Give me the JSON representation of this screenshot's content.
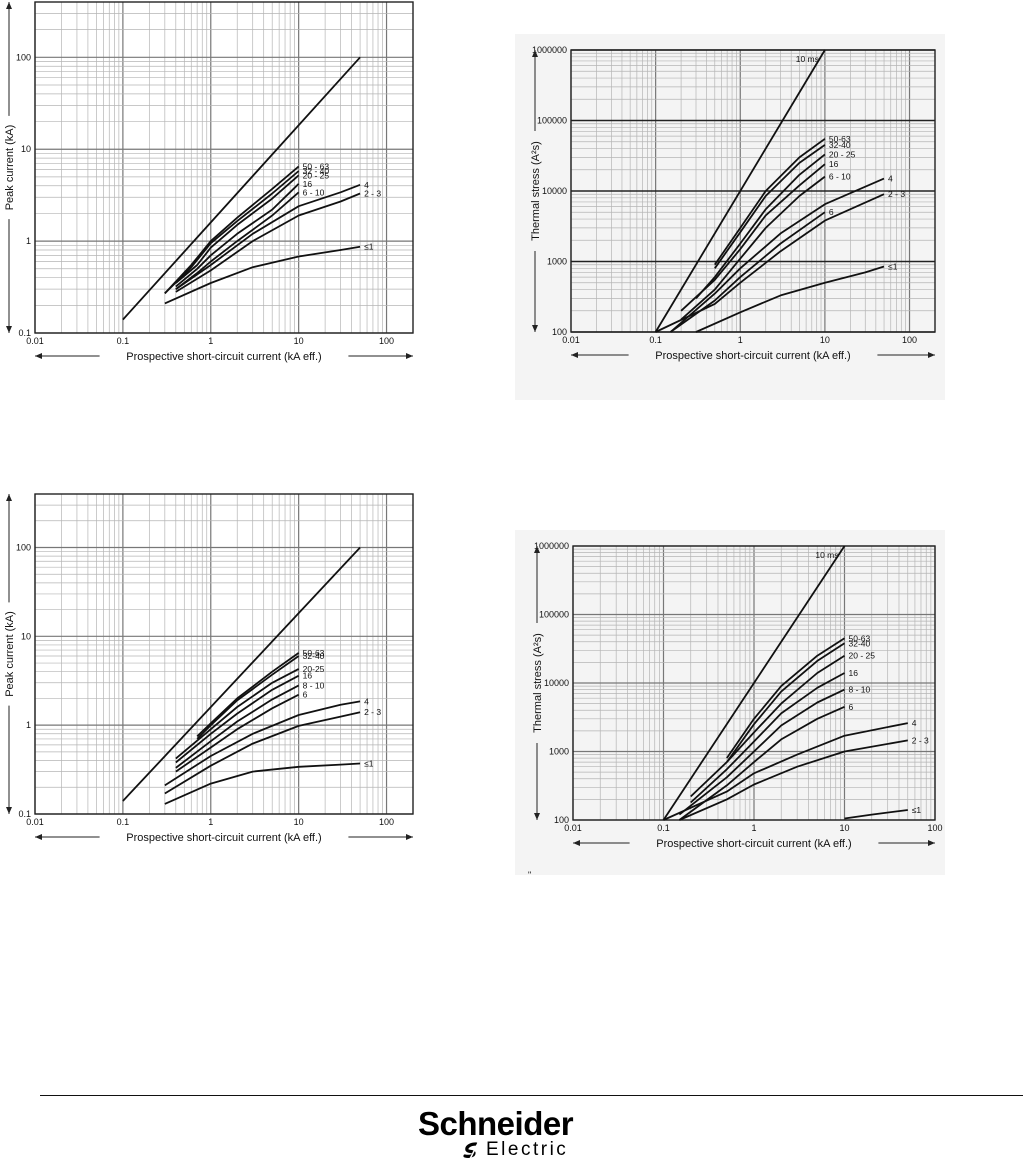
{
  "chart_data": [
    {
      "type": "line",
      "xlabel": "Prospective short-circuit current (kA eff.)",
      "ylabel": "Peak current (kA)",
      "x_scale": "log",
      "y_scale": "log",
      "xlim": [
        0.01,
        200
      ],
      "ylim": [
        0.1,
        400
      ],
      "x_ticks": [
        "0.01",
        "0.1",
        "1",
        "10",
        "100"
      ],
      "y_ticks": [
        "0.1",
        "1",
        "10",
        "100"
      ],
      "grid": true,
      "series": [
        {
          "name": "",
          "x": [
            0.1,
            50
          ],
          "y": [
            0.14,
            100
          ]
        },
        {
          "name": "50 - 63",
          "x": [
            0.3,
            0.6,
            1,
            2,
            5,
            10
          ],
          "y": [
            0.27,
            0.55,
            1,
            1.8,
            3.7,
            6.5
          ]
        },
        {
          "name": "32 - 40",
          "x": [
            0.3,
            0.6,
            1,
            2,
            5,
            10
          ],
          "y": [
            0.27,
            0.52,
            0.95,
            1.65,
            3.3,
            5.8
          ]
        },
        {
          "name": "20 - 25",
          "x": [
            0.4,
            0.7,
            1,
            2,
            5,
            10
          ],
          "y": [
            0.35,
            0.55,
            0.85,
            1.5,
            2.9,
            5.2
          ]
        },
        {
          "name": "16",
          "x": [
            0.4,
            0.7,
            1,
            2,
            5,
            10
          ],
          "y": [
            0.32,
            0.5,
            0.7,
            1.2,
            2.2,
            4.2
          ]
        },
        {
          "name": "6 - 10",
          "x": [
            0.4,
            0.7,
            1,
            2,
            5,
            10
          ],
          "y": [
            0.3,
            0.45,
            0.6,
            1.0,
            1.9,
            3.4
          ]
        },
        {
          "name": "4",
          "x": [
            0.4,
            1,
            3,
            10,
            30,
            50
          ],
          "y": [
            0.3,
            0.55,
            1.2,
            2.4,
            3.4,
            4.1
          ]
        },
        {
          "name": "2 - 3",
          "x": [
            0.4,
            1,
            3,
            10,
            30,
            50
          ],
          "y": [
            0.28,
            0.48,
            1.0,
            1.9,
            2.7,
            3.3
          ]
        },
        {
          "name": "≤1",
          "x": [
            0.3,
            1,
            3,
            10,
            30,
            50
          ],
          "y": [
            0.21,
            0.35,
            0.52,
            0.68,
            0.8,
            0.87
          ]
        }
      ]
    },
    {
      "type": "line",
      "xlabel": "Prospective short-circuit current (kA eff.)",
      "ylabel": "Thermal stress (A²s)",
      "x_scale": "log",
      "y_scale": "log",
      "xlim": [
        0.01,
        200
      ],
      "ylim": [
        100,
        1000000
      ],
      "x_ticks": [
        "0.01",
        "0.1",
        "1",
        "10",
        "100"
      ],
      "y_ticks": [
        "100",
        "1000",
        "10000",
        "100000",
        "1000000"
      ],
      "grid": true,
      "series": [
        {
          "name": "10 ms",
          "x": [
            0.1,
            10
          ],
          "y": [
            100,
            1000000
          ]
        },
        {
          "name": "50-63",
          "x": [
            0.5,
            1,
            2,
            5,
            10
          ],
          "y": [
            900,
            3000,
            10000,
            30000,
            55000
          ]
        },
        {
          "name": "32-40",
          "x": [
            0.5,
            1,
            2,
            5,
            10
          ],
          "y": [
            800,
            2600,
            8500,
            25000,
            45000
          ]
        },
        {
          "name": "20 - 25",
          "x": [
            0.3,
            0.5,
            1,
            2,
            5,
            10
          ],
          "y": [
            300,
            600,
            1800,
            5500,
            17000,
            33000
          ]
        },
        {
          "name": "16",
          "x": [
            0.2,
            0.5,
            1,
            2,
            5,
            10
          ],
          "y": [
            200,
            550,
            1500,
            4500,
            12000,
            24000
          ]
        },
        {
          "name": "6 - 10",
          "x": [
            0.2,
            0.5,
            1,
            2,
            5,
            10
          ],
          "y": [
            150,
            400,
            1100,
            3000,
            8500,
            16000
          ]
        },
        {
          "name": "4",
          "x": [
            0.15,
            0.5,
            1,
            3,
            10,
            50
          ],
          "y": [
            100,
            350,
            800,
            2500,
            6500,
            15000
          ]
        },
        {
          "name": "6",
          "x": [
            0.15,
            0.5,
            1,
            3,
            10
          ],
          "y": [
            100,
            280,
            600,
            1800,
            5000
          ]
        },
        {
          "name": "2 - 3",
          "x": [
            0.1,
            0.5,
            1,
            3,
            10,
            50
          ],
          "y": [
            100,
            250,
            500,
            1400,
            3800,
            9000
          ]
        },
        {
          "name": "≤1",
          "x": [
            0.3,
            1,
            3,
            10,
            30,
            50
          ],
          "y": [
            100,
            190,
            330,
            500,
            700,
            850
          ]
        }
      ]
    },
    {
      "type": "line",
      "xlabel": "Prospective short-circuit current (kA eff.)",
      "ylabel": "Peak current (kA)",
      "x_scale": "log",
      "y_scale": "log",
      "xlim": [
        0.01,
        200
      ],
      "ylim": [
        0.1,
        400
      ],
      "x_ticks": [
        "0.01",
        "0.1",
        "1",
        "10",
        "100"
      ],
      "y_ticks": [
        "0.1",
        "1",
        "10",
        "100"
      ],
      "grid": true,
      "series": [
        {
          "name": "",
          "x": [
            0.1,
            50
          ],
          "y": [
            0.14,
            100
          ]
        },
        {
          "name": "50-63",
          "x": [
            0.7,
            1,
            2,
            5,
            10
          ],
          "y": [
            0.75,
            1.05,
            2.0,
            4.0,
            6.5
          ]
        },
        {
          "name": "32-40",
          "x": [
            0.7,
            1,
            2,
            5,
            10
          ],
          "y": [
            0.7,
            1.0,
            1.9,
            3.7,
            6.0
          ]
        },
        {
          "name": "20-25",
          "x": [
            0.4,
            1,
            2,
            5,
            10
          ],
          "y": [
            0.42,
            0.9,
            1.6,
            3.0,
            4.3
          ]
        },
        {
          "name": "16",
          "x": [
            0.4,
            1,
            2,
            5,
            10
          ],
          "y": [
            0.38,
            0.8,
            1.35,
            2.5,
            3.6
          ]
        },
        {
          "name": "8 - 10",
          "x": [
            0.4,
            1,
            2,
            5,
            10
          ],
          "y": [
            0.33,
            0.66,
            1.1,
            1.95,
            2.8
          ]
        },
        {
          "name": "6",
          "x": [
            0.4,
            1,
            2,
            5,
            10
          ],
          "y": [
            0.3,
            0.56,
            0.9,
            1.55,
            2.2
          ]
        },
        {
          "name": "4",
          "x": [
            0.3,
            1,
            3,
            10,
            30,
            50
          ],
          "y": [
            0.21,
            0.45,
            0.8,
            1.3,
            1.7,
            1.85
          ]
        },
        {
          "name": "2 - 3",
          "x": [
            0.3,
            1,
            3,
            10,
            30,
            50
          ],
          "y": [
            0.17,
            0.35,
            0.62,
            0.98,
            1.25,
            1.4
          ]
        },
        {
          "name": "≤1",
          "x": [
            0.3,
            1,
            3,
            10,
            30,
            50
          ],
          "y": [
            0.13,
            0.22,
            0.3,
            0.34,
            0.36,
            0.37
          ]
        }
      ]
    },
    {
      "type": "line",
      "xlabel": "Prospective short-circuit current (kA eff.)",
      "ylabel": "Thermal stress (A²s)",
      "x_scale": "log",
      "y_scale": "log",
      "xlim": [
        0.01,
        100
      ],
      "ylim": [
        100,
        1000000
      ],
      "x_ticks": [
        "0.01",
        "0.1",
        "1",
        "10",
        "100"
      ],
      "y_ticks": [
        "100",
        "1000",
        "10000",
        "100000",
        "1000000"
      ],
      "grid": true,
      "series": [
        {
          "name": "10 ms",
          "x": [
            0.1,
            10
          ],
          "y": [
            100,
            1000000
          ]
        },
        {
          "name": "50-63",
          "x": [
            0.5,
            1,
            2,
            5,
            10
          ],
          "y": [
            800,
            3000,
            9000,
            25000,
            45000
          ]
        },
        {
          "name": "32-40",
          "x": [
            0.5,
            1,
            2,
            5,
            10
          ],
          "y": [
            700,
            2500,
            7500,
            21000,
            38000
          ]
        },
        {
          "name": "20 - 25",
          "x": [
            0.2,
            0.5,
            1,
            2,
            5,
            10
          ],
          "y": [
            220,
            700,
            1900,
            5000,
            14000,
            25000
          ]
        },
        {
          "name": "16",
          "x": [
            0.2,
            0.5,
            1,
            2,
            5,
            10
          ],
          "y": [
            180,
            550,
            1400,
            3600,
            8500,
            14000
          ]
        },
        {
          "name": "8 - 10",
          "x": [
            0.15,
            0.5,
            1,
            2,
            5,
            10
          ],
          "y": [
            120,
            420,
            1000,
            2400,
            5200,
            8000
          ]
        },
        {
          "name": "6",
          "x": [
            0.15,
            0.5,
            1,
            2,
            5,
            10
          ],
          "y": [
            100,
            320,
            700,
            1500,
            3000,
            4500
          ]
        },
        {
          "name": "4",
          "x": [
            0.1,
            0.5,
            1,
            3,
            10,
            50
          ],
          "y": [
            100,
            260,
            480,
            900,
            1700,
            2600
          ]
        },
        {
          "name": "2 - 3",
          "x": [
            0.15,
            0.5,
            1,
            3,
            10,
            50
          ],
          "y": [
            100,
            200,
            330,
            600,
            1000,
            1450
          ]
        },
        {
          "name": "≤1",
          "x": [
            10,
            20,
            50
          ],
          "y": [
            105,
            120,
            140
          ]
        }
      ]
    }
  ],
  "footer": {
    "brand_line1": "Schneider",
    "brand_line2": "Electric",
    "brand_color": "#000000"
  },
  "stray_mark": "\""
}
